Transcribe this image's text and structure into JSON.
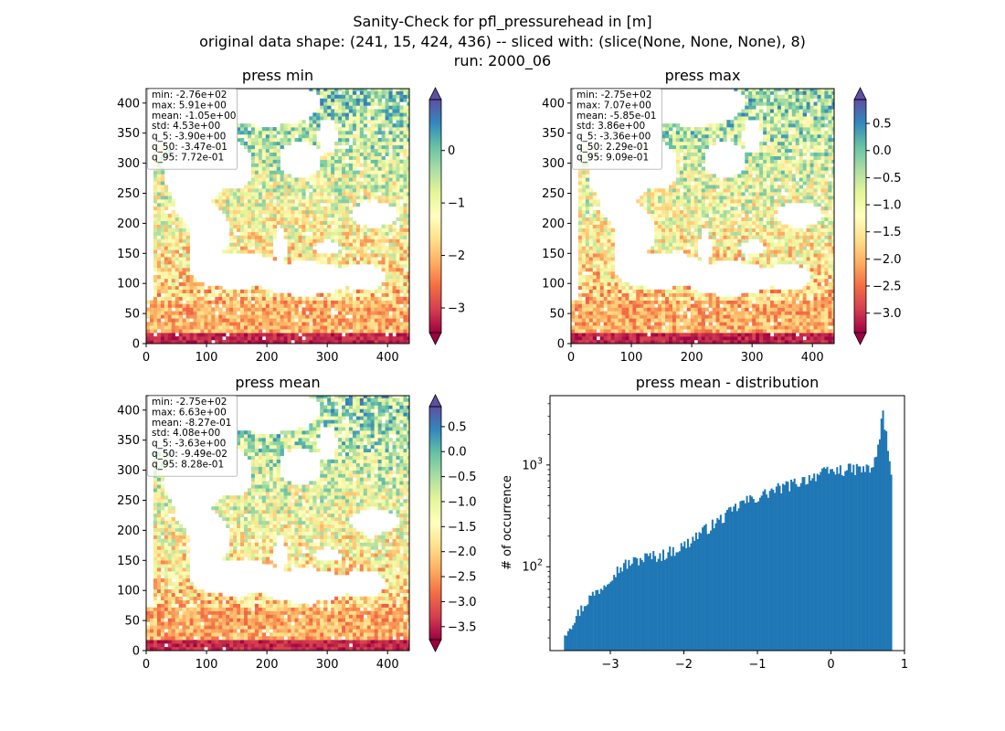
{
  "figure": {
    "title_lines": [
      "Sanity-Check for pfl_pressurehead in [m]",
      "original data shape: (241, 15, 424, 436) -- sliced with: (slice(None, None, None), 8)",
      "run: 2000_06"
    ]
  },
  "colormap": {
    "name": "Spectral",
    "stops": [
      "#9e0142",
      "#d53e4f",
      "#f46d43",
      "#fdae61",
      "#fee08b",
      "#ffffbf",
      "#e6f598",
      "#abdda4",
      "#66c2a5",
      "#3288bd",
      "#5e4fa2"
    ]
  },
  "chart_data": [
    {
      "type": "heatmap",
      "title": "press min",
      "xlim": [
        0,
        436
      ],
      "ylim": [
        0,
        424
      ],
      "xticks": [
        0,
        100,
        200,
        300,
        400
      ],
      "yticks": [
        0,
        50,
        100,
        150,
        200,
        250,
        300,
        350,
        400
      ],
      "colorbar": {
        "vmin": -3.47,
        "vmax": 0.97,
        "ticks": [
          0,
          -1,
          -2,
          -3
        ],
        "extend": "both"
      },
      "stats": [
        "min: -2.76e+02",
        "max: 5.91e+00",
        "mean: -1.05e+00",
        "std: 4.53e+00",
        "q_5: -3.90e+00",
        "q_50: -3.47e-01",
        "q_95: 7.72e-01"
      ]
    },
    {
      "type": "heatmap",
      "title": "press max",
      "xlim": [
        0,
        436
      ],
      "ylim": [
        0,
        424
      ],
      "xticks": [
        0,
        100,
        200,
        300,
        400
      ],
      "yticks": [
        0,
        50,
        100,
        150,
        200,
        250,
        300,
        350,
        400
      ],
      "colorbar": {
        "vmin": -3.36,
        "vmax": 0.94,
        "ticks": [
          0.5,
          0.0,
          -0.5,
          -1.0,
          -1.5,
          -2.0,
          -2.5,
          -3.0
        ],
        "extend": "both"
      },
      "stats": [
        "min: -2.75e+02",
        "max: 7.07e+00",
        "mean: -5.85e-01",
        "std: 3.86e+00",
        "q_5: -3.36e+00",
        "q_50: 2.29e-01",
        "q_95: 9.09e-01"
      ]
    },
    {
      "type": "heatmap",
      "title": "press mean",
      "xlim": [
        0,
        436
      ],
      "ylim": [
        0,
        424
      ],
      "xticks": [
        0,
        100,
        200,
        300,
        400
      ],
      "yticks": [
        0,
        50,
        100,
        150,
        200,
        250,
        300,
        350,
        400
      ],
      "colorbar": {
        "vmin": -3.76,
        "vmax": 0.9,
        "ticks": [
          0.5,
          0.0,
          -0.5,
          -1.0,
          -1.5,
          -2.0,
          -2.5,
          -3.0,
          -3.5
        ],
        "extend": "both"
      },
      "stats": [
        "min: -2.75e+02",
        "max: 6.63e+00",
        "mean: -8.27e-01",
        "std: 4.08e+00",
        "q_5: -3.63e+00",
        "q_50: -9.49e-02",
        "q_95: 8.28e-01"
      ]
    },
    {
      "type": "bar",
      "title": "press mean - distribution",
      "ylabel": "# of occurrence",
      "yscale": "log",
      "color": "#1f77b4",
      "xlim": [
        -3.82,
        1.0
      ],
      "ylim": [
        15,
        4800
      ],
      "xticks": [
        -3,
        -2,
        -1,
        0,
        1
      ],
      "yticks_major": [
        {
          "value": 100,
          "label": "10",
          "exp": "2"
        },
        {
          "value": 1000,
          "label": "10",
          "exp": "3"
        }
      ],
      "bin_range": [
        -3.63,
        0.83
      ],
      "anchors": [
        [
          -3.63,
          22
        ],
        [
          -3.5,
          30
        ],
        [
          -3.3,
          48
        ],
        [
          -3.1,
          65
        ],
        [
          -3.0,
          82
        ],
        [
          -2.8,
          105
        ],
        [
          -2.5,
          125
        ],
        [
          -2.3,
          130
        ],
        [
          -2.0,
          160
        ],
        [
          -1.8,
          210
        ],
        [
          -1.6,
          260
        ],
        [
          -1.4,
          330
        ],
        [
          -1.2,
          430
        ],
        [
          -1.0,
          480
        ],
        [
          -0.8,
          560
        ],
        [
          -0.6,
          620
        ],
        [
          -0.4,
          700
        ],
        [
          -0.2,
          800
        ],
        [
          0.0,
          870
        ],
        [
          0.2,
          900
        ],
        [
          0.4,
          920
        ],
        [
          0.55,
          900
        ],
        [
          0.65,
          1500
        ],
        [
          0.7,
          3500
        ],
        [
          0.75,
          2000
        ],
        [
          0.8,
          1000
        ],
        [
          0.83,
          600
        ]
      ]
    }
  ]
}
